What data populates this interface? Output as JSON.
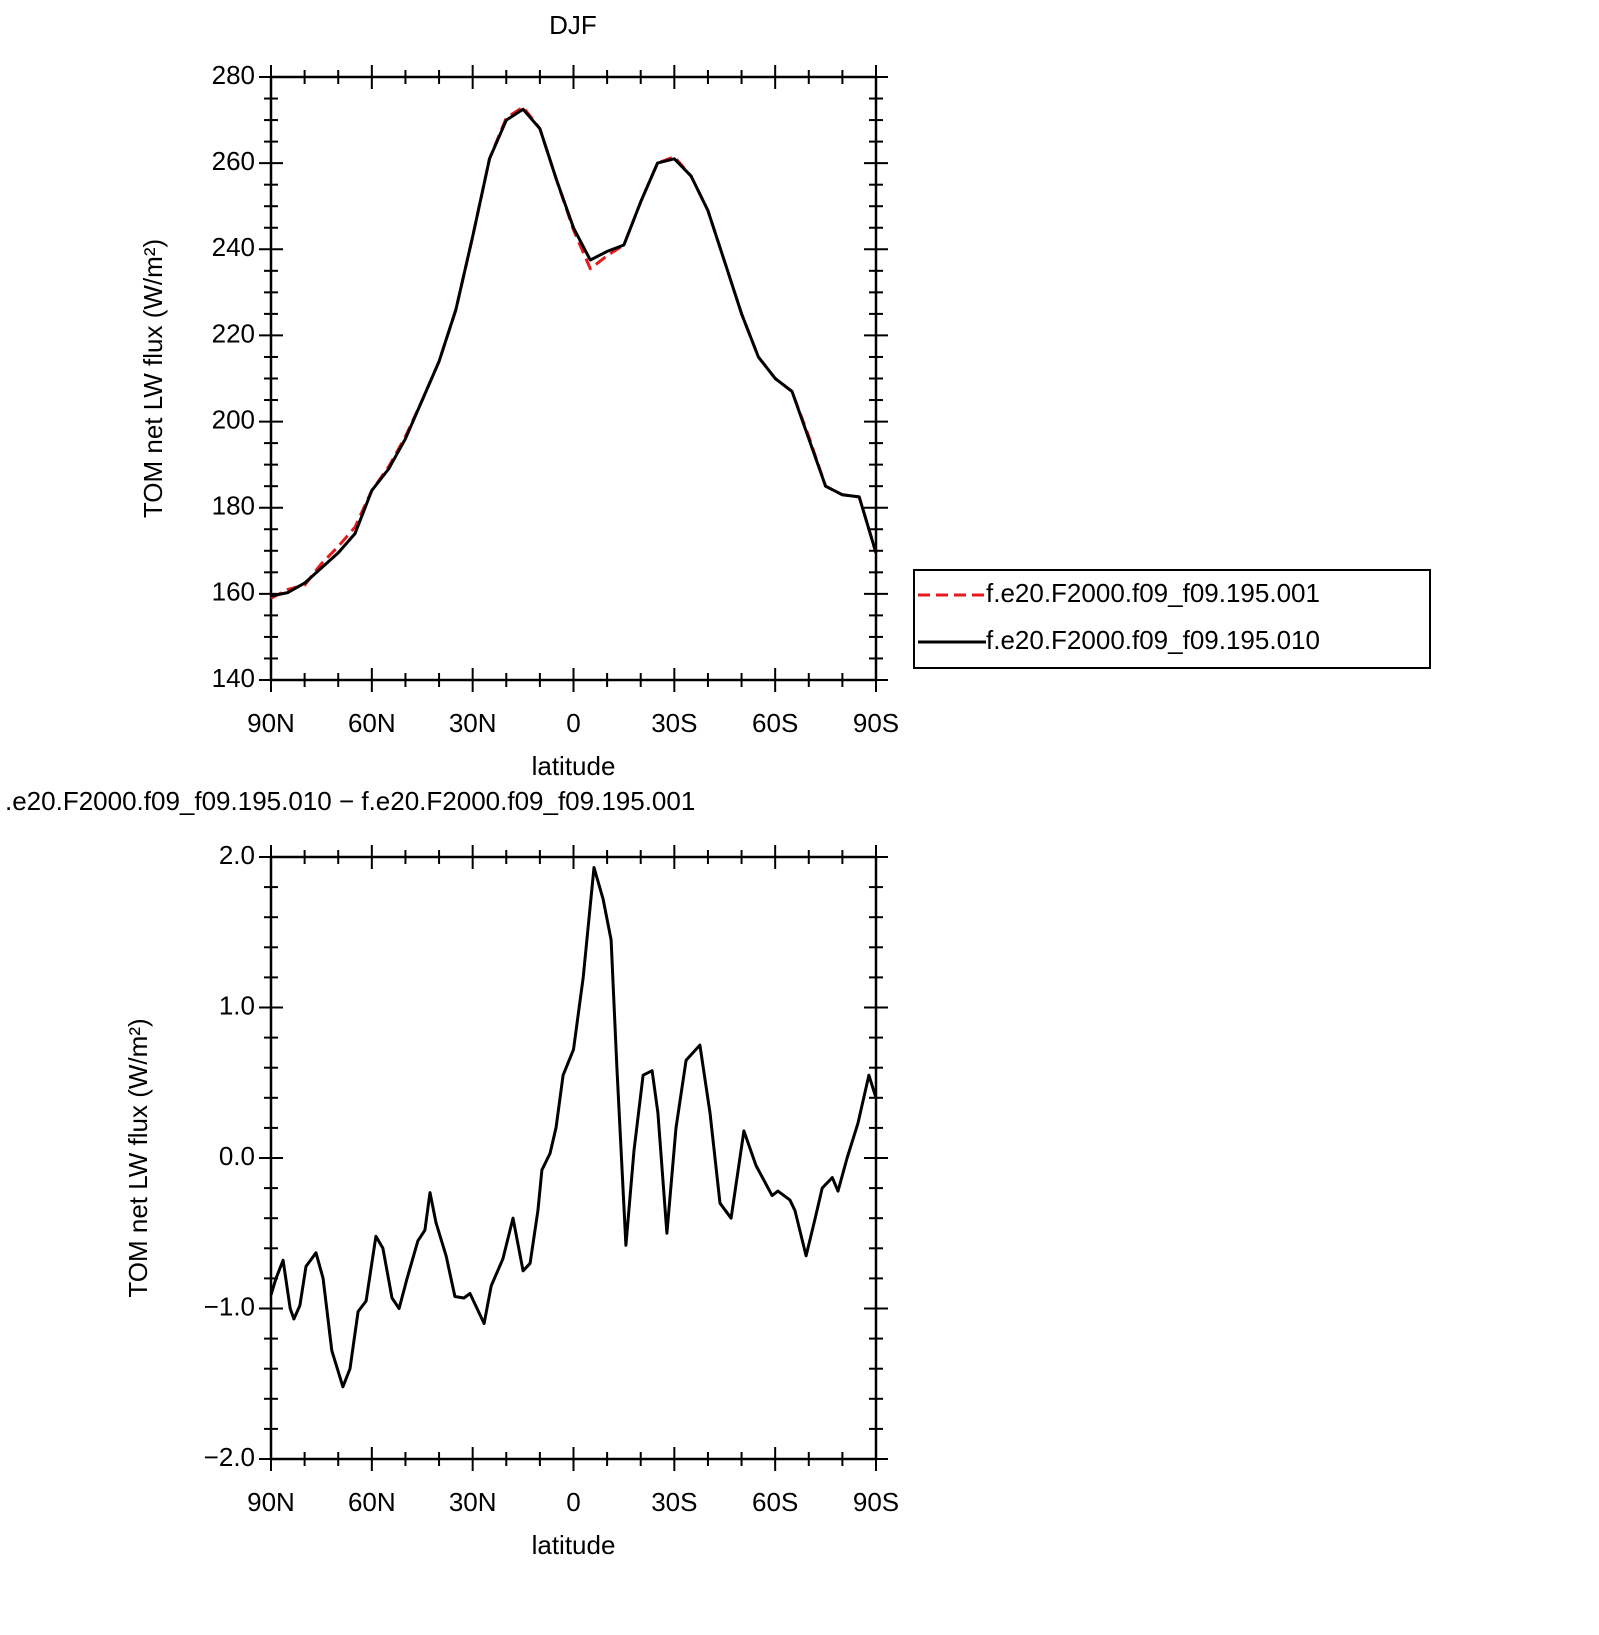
{
  "chart_data": [
    {
      "type": "line",
      "title": "DJF",
      "xlabel": "latitude",
      "ylabel": "TOM net LW flux (W/m²)",
      "x": [
        90,
        85,
        80,
        75,
        70,
        65,
        60,
        55,
        50,
        45,
        40,
        35,
        30,
        25,
        20,
        15,
        10,
        5,
        0,
        -5,
        -10,
        -15,
        -20,
        -25,
        -30,
        -35,
        -40,
        -45,
        -50,
        -55,
        -60,
        -65,
        -70,
        -75,
        -80,
        -85,
        -90
      ],
      "series": [
        {
          "name": "f.e20.F2000.f09_f09.195.001",
          "color": "#e41a1c",
          "style": "dashed",
          "values": [
            159,
            161,
            162,
            167,
            171,
            175.5,
            184,
            189.5,
            196.5,
            205,
            214,
            226,
            243,
            261,
            270.5,
            273,
            268,
            256,
            244.5,
            235.5,
            238.5,
            241,
            251,
            260,
            261.5,
            257,
            249,
            237,
            225,
            215,
            210,
            207,
            196.5,
            185,
            183,
            182.5,
            169.5
          ]
        },
        {
          "name": "f.e20.F2000.f09_f09.195.010",
          "color": "#000000",
          "style": "solid",
          "values": [
            159.5,
            160.3,
            162.5,
            166,
            169.5,
            174,
            184,
            189,
            196,
            205,
            214,
            226,
            243,
            261,
            270,
            272.5,
            268,
            256,
            245,
            237.5,
            239.5,
            241,
            251,
            260,
            261,
            257,
            249,
            237,
            225,
            215,
            210,
            207,
            196,
            185,
            183,
            182.5,
            169.5
          ]
        }
      ],
      "xlim": [
        90,
        -90
      ],
      "xticks": [
        {
          "value": 90,
          "label": "90N"
        },
        {
          "value": 60,
          "label": "60N"
        },
        {
          "value": 30,
          "label": "30N"
        },
        0,
        {
          "value": -30,
          "label": "30S"
        },
        {
          "value": -60,
          "label": "60S"
        },
        {
          "value": -90,
          "label": "90S"
        }
      ],
      "ylim": [
        140,
        280
      ],
      "yticks": [
        140,
        160,
        180,
        200,
        220,
        240,
        260,
        280
      ],
      "legend": "outside-right"
    },
    {
      "type": "line",
      "title": ".e20.F2000.f09_f09.195.010 − f.e20.F2000.f09_f09.195.001",
      "xlabel": "latitude",
      "ylabel": "TOM net LW flux (W/m²)",
      "x": [
        90,
        88.5,
        86.4,
        84.3,
        83.2,
        81.4,
        79.6,
        76.6,
        74.5,
        71.9,
        68.6,
        66.5,
        64.1,
        61.7,
        58.8,
        56.7,
        54.0,
        51.9,
        49.5,
        46.3,
        44.2,
        42.7,
        40.9,
        37.9,
        35.3,
        32.6,
        30.8,
        26.6,
        24.5,
        21.0,
        18.0,
        15.0,
        12.9,
        10.6,
        9.4,
        7.0,
        5.2,
        3.1,
        0,
        -2.9,
        -6.1,
        -8.8,
        -11.2,
        -12.9,
        -15.6,
        -18.0,
        -20.7,
        -23.4,
        -25.1,
        -27.8,
        -30.5,
        -33.5,
        -37.6,
        -40.6,
        -43.6,
        -46.9,
        -50.7,
        -54.3,
        -59.1,
        -60.8,
        -64.4,
        -65.9,
        -69.2,
        -71.9,
        -74.0,
        -77.0,
        -78.7,
        -81.4,
        -84.6,
        -87.9,
        -90
      ],
      "values": [
        -0.91,
        -0.8,
        -0.68,
        -1.0,
        -1.07,
        -0.98,
        -0.72,
        -0.63,
        -0.8,
        -1.28,
        -1.52,
        -1.4,
        -1.02,
        -0.95,
        -0.52,
        -0.6,
        -0.93,
        -1.0,
        -0.8,
        -0.55,
        -0.48,
        -0.23,
        -0.43,
        -0.65,
        -0.92,
        -0.93,
        -0.9,
        -1.1,
        -0.85,
        -0.67,
        -0.4,
        -0.75,
        -0.7,
        -0.35,
        -0.08,
        0.03,
        0.2,
        0.55,
        0.72,
        1.2,
        1.93,
        1.72,
        1.45,
        0.6,
        -0.58,
        0.05,
        0.55,
        0.58,
        0.3,
        -0.5,
        0.2,
        0.65,
        0.75,
        0.3,
        -0.3,
        -0.4,
        0.18,
        -0.05,
        -0.25,
        -0.22,
        -0.28,
        -0.35,
        -0.65,
        -0.4,
        -0.2,
        -0.13,
        -0.22,
        0.0,
        0.23,
        0.55,
        0.4
      ],
      "color": "#000000",
      "xlim": [
        90,
        -90
      ],
      "xticks": [
        {
          "value": 90,
          "label": "90N"
        },
        {
          "value": 60,
          "label": "60N"
        },
        {
          "value": 30,
          "label": "30N"
        },
        0,
        {
          "value": -30,
          "label": "30S"
        },
        {
          "value": -60,
          "label": "60S"
        },
        {
          "value": -90,
          "label": "90S"
        }
      ],
      "ylim": [
        -2,
        2
      ],
      "yticks": [
        {
          "value": -2,
          "label": "−2.0"
        },
        {
          "value": -1,
          "label": "−1.0"
        },
        {
          "value": 0,
          "label": "0.0"
        },
        {
          "value": 1,
          "label": "1.0"
        },
        {
          "value": 2,
          "label": "2.0"
        }
      ]
    }
  ]
}
